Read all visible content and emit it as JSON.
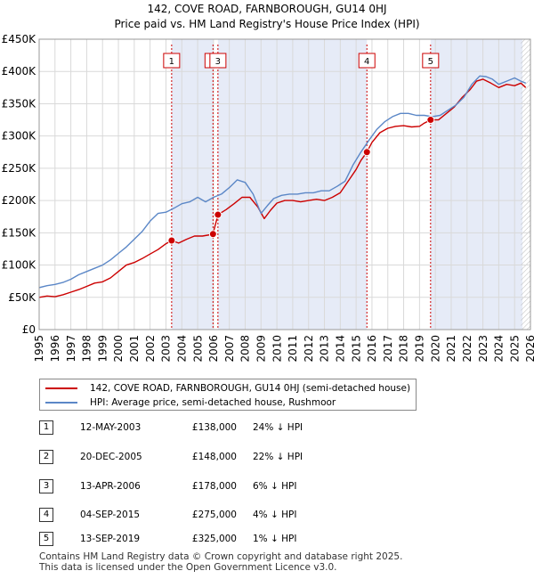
{
  "title": {
    "line1": "142, COVE ROAD, FARNBOROUGH, GU14 0HJ",
    "line2": "Price paid vs. HM Land Registry's House Price Index (HPI)"
  },
  "chart_data": {
    "type": "line",
    "title": "142, COVE ROAD, FARNBOROUGH, GU14 0HJ - Price paid vs. HM Land Registry's House Price Index (HPI)",
    "xlabel": "",
    "ylabel": "",
    "xlim": [
      1995,
      2026
    ],
    "ylim": [
      0,
      450000
    ],
    "x_ticks": [
      "1995",
      "1996",
      "1997",
      "1998",
      "1999",
      "2000",
      "2001",
      "2002",
      "2003",
      "2004",
      "2005",
      "2006",
      "2007",
      "2008",
      "2009",
      "2010",
      "2011",
      "2012",
      "2013",
      "2014",
      "2015",
      "2016",
      "2017",
      "2018",
      "2019",
      "2020",
      "2021",
      "2022",
      "2023",
      "2024",
      "2025",
      "2026"
    ],
    "y_ticks": [
      {
        "value": 0,
        "label": "£0"
      },
      {
        "value": 50000,
        "label": "£50K"
      },
      {
        "value": 100000,
        "label": "£100K"
      },
      {
        "value": 150000,
        "label": "£150K"
      },
      {
        "value": 200000,
        "label": "£200K"
      },
      {
        "value": 250000,
        "label": "£250K"
      },
      {
        "value": 300000,
        "label": "£300K"
      },
      {
        "value": 350000,
        "label": "£350K"
      },
      {
        "value": 400000,
        "label": "£400K"
      },
      {
        "value": 450000,
        "label": "£450K"
      }
    ],
    "grid": true,
    "legend_position": "below",
    "series": [
      {
        "name": "142, COVE ROAD, FARNBOROUGH, GU14 0HJ (semi-detached house)",
        "color": "#cc0000",
        "x": [
          1995.0,
          1995.5,
          1996.0,
          1996.5,
          1997.0,
          1997.5,
          1998.0,
          1998.5,
          1999.0,
          1999.5,
          2000.0,
          2000.5,
          2001.0,
          2001.5,
          2002.0,
          2002.5,
          2003.0,
          2003.36,
          2003.8,
          2004.3,
          2004.8,
          2005.3,
          2005.8,
          2005.97,
          2006.28,
          2006.8,
          2007.3,
          2007.8,
          2008.3,
          2008.8,
          2009.2,
          2009.6,
          2010.0,
          2010.5,
          2011.0,
          2011.5,
          2012.0,
          2012.5,
          2013.0,
          2013.5,
          2014.0,
          2014.5,
          2015.0,
          2015.3,
          2015.68,
          2016.0,
          2016.5,
          2017.0,
          2017.5,
          2018.0,
          2018.5,
          2019.0,
          2019.3,
          2019.7,
          2020.2,
          2020.7,
          2021.2,
          2021.7,
          2022.2,
          2022.6,
          2023.0,
          2023.5,
          2024.0,
          2024.5,
          2025.0,
          2025.4,
          2025.7
        ],
        "values": [
          50000,
          52000,
          51000,
          54000,
          58000,
          62000,
          67000,
          72000,
          74000,
          80000,
          90000,
          100000,
          104000,
          110000,
          117000,
          124000,
          133000,
          138000,
          134000,
          140000,
          145000,
          145000,
          147000,
          148000,
          178000,
          186000,
          195000,
          205000,
          205000,
          190000,
          172000,
          185000,
          196000,
          200000,
          200000,
          198000,
          200000,
          202000,
          200000,
          205000,
          212000,
          230000,
          248000,
          262000,
          275000,
          290000,
          305000,
          312000,
          315000,
          316000,
          314000,
          315000,
          320000,
          325000,
          325000,
          335000,
          345000,
          360000,
          372000,
          385000,
          388000,
          382000,
          375000,
          380000,
          378000,
          382000,
          375000
        ]
      },
      {
        "name": "HPI: Average price, semi-detached house, Rushmoor",
        "color": "#5b87c7",
        "x": [
          1995.0,
          1995.5,
          1996.0,
          1996.5,
          1997.0,
          1997.5,
          1998.0,
          1998.5,
          1999.0,
          1999.5,
          2000.0,
          2000.5,
          2001.0,
          2001.5,
          2002.0,
          2002.5,
          2003.0,
          2003.5,
          2004.0,
          2004.5,
          2005.0,
          2005.5,
          2006.0,
          2006.5,
          2007.0,
          2007.5,
          2008.0,
          2008.5,
          2009.0,
          2009.4,
          2009.8,
          2010.3,
          2010.8,
          2011.3,
          2011.8,
          2012.3,
          2012.8,
          2013.3,
          2013.8,
          2014.3,
          2014.8,
          2015.3,
          2015.8,
          2016.3,
          2016.8,
          2017.3,
          2017.8,
          2018.3,
          2018.8,
          2019.3,
          2019.8,
          2020.3,
          2020.8,
          2021.3,
          2021.8,
          2022.3,
          2022.8,
          2023.2,
          2023.6,
          2024.0,
          2024.5,
          2025.0,
          2025.4,
          2025.7
        ],
        "values": [
          65000,
          68000,
          70000,
          73000,
          78000,
          85000,
          90000,
          95000,
          100000,
          108000,
          118000,
          128000,
          140000,
          152000,
          168000,
          180000,
          182000,
          188000,
          195000,
          198000,
          205000,
          198000,
          205000,
          210000,
          220000,
          232000,
          228000,
          210000,
          180000,
          192000,
          203000,
          208000,
          210000,
          210000,
          212000,
          212000,
          215000,
          215000,
          222000,
          230000,
          255000,
          275000,
          293000,
          310000,
          322000,
          330000,
          335000,
          335000,
          332000,
          332000,
          330000,
          332000,
          340000,
          348000,
          360000,
          380000,
          393000,
          392000,
          388000,
          380000,
          385000,
          390000,
          385000,
          382000
        ]
      }
    ],
    "sales": [
      {
        "label": "1",
        "x": 2003.36,
        "value": 138000
      },
      {
        "label": "2",
        "x": 2005.97,
        "value": 148000
      },
      {
        "label": "3",
        "x": 2006.28,
        "value": 178000
      },
      {
        "label": "4",
        "x": 2015.68,
        "value": 275000
      },
      {
        "label": "5",
        "x": 2019.7,
        "value": 325000
      }
    ],
    "shaded_ranges": [
      [
        2003.36,
        2005.97
      ],
      [
        2006.28,
        2015.68
      ],
      [
        2019.7,
        2025.5
      ]
    ],
    "hatch_from": 2025.4
  },
  "legend": {
    "property": "142, COVE ROAD, FARNBOROUGH, GU14 0HJ (semi-detached house)",
    "hpi": "HPI: Average price, semi-detached house, Rushmoor"
  },
  "sales_table": [
    {
      "num": "1",
      "date": "12-MAY-2003",
      "price": "£138,000",
      "hpi": "24% ↓ HPI"
    },
    {
      "num": "2",
      "date": "20-DEC-2005",
      "price": "£148,000",
      "hpi": "22% ↓ HPI"
    },
    {
      "num": "3",
      "date": "13-APR-2006",
      "price": "£178,000",
      "hpi": "6% ↓ HPI"
    },
    {
      "num": "4",
      "date": "04-SEP-2015",
      "price": "£275,000",
      "hpi": "4% ↓ HPI"
    },
    {
      "num": "5",
      "date": "13-SEP-2019",
      "price": "£325,000",
      "hpi": "1% ↓ HPI"
    }
  ],
  "footer": {
    "line1": "Contains HM Land Registry data © Crown copyright and database right 2025.",
    "line2": "This data is licensed under the Open Government Licence v3.0."
  }
}
